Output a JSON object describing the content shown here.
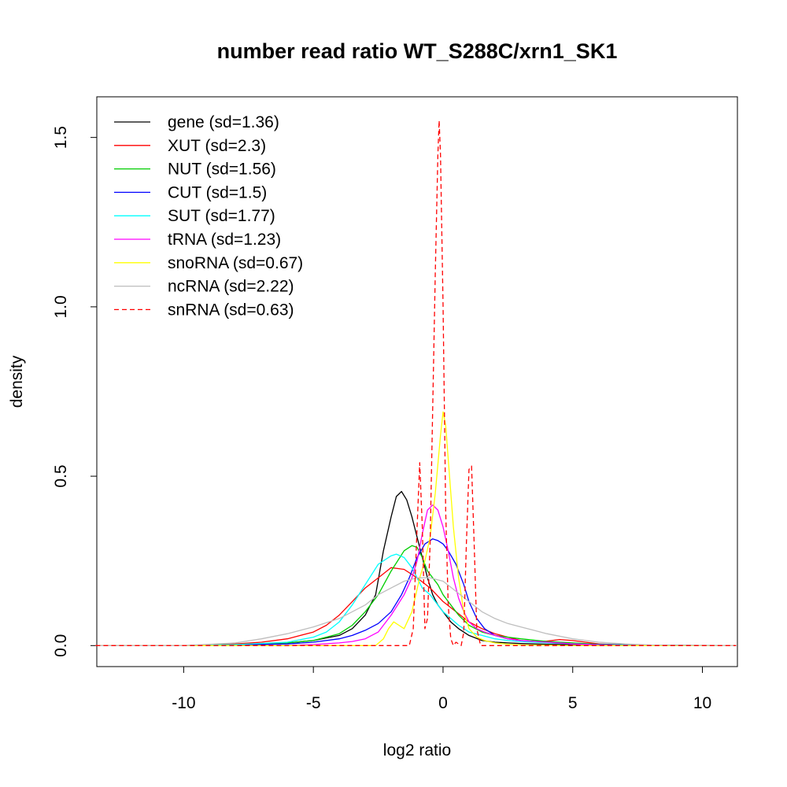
{
  "chart_data": {
    "type": "line",
    "title": "number read ratio WT_S288C/xrn1_SK1",
    "xlabel": "log2 ratio",
    "ylabel": "density",
    "xlim": [
      -13.35,
      11.35
    ],
    "ylim": [
      -0.062,
      1.62
    ],
    "xticks": [
      -10,
      -5,
      0,
      5,
      10
    ],
    "xtick_labels": [
      "-10",
      "-5",
      "0",
      "5",
      "10"
    ],
    "yticks": [
      0,
      0.5,
      1,
      1.5
    ],
    "ytick_labels": [
      "0.0",
      "0.5",
      "1.0",
      "1.5"
    ],
    "grid": false,
    "legend_position": "top-left",
    "series": [
      {
        "name": "gene (sd=1.36)",
        "color": "#000000",
        "dash": false,
        "x": [
          -13.4,
          -10,
          -8,
          -6,
          -5,
          -4,
          -3.5,
          -3,
          -2.6,
          -2.3,
          -2.0,
          -1.8,
          -1.6,
          -1.4,
          -1.2,
          -1.0,
          -0.8,
          -0.6,
          -0.4,
          -0.2,
          0,
          0.3,
          0.6,
          1.0,
          1.5,
          2.0,
          2.5,
          3,
          4,
          5,
          6,
          8,
          11.3
        ],
        "y": [
          0,
          0,
          0.003,
          0.008,
          0.015,
          0.03,
          0.05,
          0.09,
          0.15,
          0.28,
          0.38,
          0.44,
          0.455,
          0.43,
          0.38,
          0.32,
          0.26,
          0.2,
          0.15,
          0.12,
          0.1,
          0.07,
          0.05,
          0.03,
          0.015,
          0.01,
          0.008,
          0.006,
          0.004,
          0.003,
          0.002,
          0,
          0
        ]
      },
      {
        "name": "XUT (sd=2.3)",
        "color": "#ff0000",
        "dash": false,
        "x": [
          -13.4,
          -10,
          -8,
          -7,
          -6,
          -5,
          -4.5,
          -4,
          -3.5,
          -3,
          -2.5,
          -2.0,
          -1.5,
          -1.0,
          -0.5,
          0,
          0.5,
          1.0,
          1.5,
          2,
          2.5,
          3,
          3.5,
          4,
          4.5,
          5,
          5.5,
          6,
          7,
          8,
          11.3
        ],
        "y": [
          0,
          0,
          0.005,
          0.01,
          0.02,
          0.04,
          0.06,
          0.09,
          0.13,
          0.17,
          0.2,
          0.23,
          0.225,
          0.2,
          0.17,
          0.13,
          0.1,
          0.07,
          0.05,
          0.035,
          0.025,
          0.015,
          0.012,
          0.013,
          0.018,
          0.015,
          0.01,
          0.005,
          0.002,
          0.001,
          0
        ]
      },
      {
        "name": "NUT (sd=1.56)",
        "color": "#00cd00",
        "dash": false,
        "x": [
          -13.4,
          -10,
          -8,
          -6,
          -5,
          -4,
          -3.5,
          -3,
          -2.5,
          -2.0,
          -1.5,
          -1.2,
          -1.0,
          -0.8,
          -0.6,
          -0.4,
          -0.2,
          0,
          0.3,
          0.6,
          1.0,
          1.5,
          2,
          2.5,
          3,
          4,
          5,
          6,
          8,
          11.3
        ],
        "y": [
          0,
          0,
          0.003,
          0.008,
          0.015,
          0.035,
          0.06,
          0.1,
          0.15,
          0.22,
          0.28,
          0.295,
          0.29,
          0.26,
          0.22,
          0.2,
          0.18,
          0.15,
          0.12,
          0.09,
          0.06,
          0.04,
          0.03,
          0.025,
          0.02,
          0.012,
          0.008,
          0.004,
          0.001,
          0
        ]
      },
      {
        "name": "CUT (sd=1.5)",
        "color": "#0000ff",
        "dash": false,
        "x": [
          -13.4,
          -10,
          -8,
          -6,
          -5,
          -4,
          -3.5,
          -3,
          -2.5,
          -2.0,
          -1.6,
          -1.3,
          -1.0,
          -0.7,
          -0.4,
          -0.2,
          0,
          0.2,
          0.5,
          0.8,
          1.0,
          1.3,
          1.6,
          2,
          2.5,
          3,
          4,
          5,
          6,
          8,
          11.3
        ],
        "y": [
          0,
          0,
          0.002,
          0.005,
          0.01,
          0.02,
          0.03,
          0.045,
          0.065,
          0.1,
          0.15,
          0.2,
          0.26,
          0.3,
          0.315,
          0.31,
          0.3,
          0.28,
          0.24,
          0.18,
          0.13,
          0.08,
          0.05,
          0.03,
          0.02,
          0.015,
          0.01,
          0.005,
          0.003,
          0.001,
          0
        ]
      },
      {
        "name": "SUT (sd=1.77)",
        "color": "#00ffff",
        "dash": false,
        "x": [
          -13.4,
          -10,
          -8,
          -6,
          -5,
          -4.5,
          -4,
          -3.5,
          -3,
          -2.5,
          -2.0,
          -1.8,
          -1.5,
          -1.2,
          -1.0,
          -0.8,
          -0.5,
          -0.2,
          0,
          0.3,
          0.6,
          1.0,
          1.5,
          2,
          2.5,
          3,
          4,
          5,
          6,
          8,
          11.3
        ],
        "y": [
          0,
          0,
          0.003,
          0.01,
          0.025,
          0.04,
          0.07,
          0.12,
          0.18,
          0.24,
          0.265,
          0.27,
          0.26,
          0.23,
          0.2,
          0.17,
          0.15,
          0.12,
          0.1,
          0.08,
          0.06,
          0.04,
          0.03,
          0.02,
          0.015,
          0.012,
          0.008,
          0.005,
          0.002,
          0,
          0
        ]
      },
      {
        "name": "tRNA (sd=1.23)",
        "color": "#ff00ff",
        "dash": false,
        "x": [
          -13.4,
          -6,
          -5,
          -4,
          -3.5,
          -3,
          -2.5,
          -2.0,
          -1.5,
          -1.2,
          -1.0,
          -0.8,
          -0.6,
          -0.4,
          -0.2,
          0,
          0.2,
          0.4,
          0.6,
          0.8,
          1.0,
          1.3,
          1.6,
          2,
          2.5,
          3,
          4,
          5,
          6,
          7,
          11.3
        ],
        "y": [
          0,
          0,
          0.003,
          0.008,
          0.012,
          0.02,
          0.04,
          0.09,
          0.15,
          0.2,
          0.25,
          0.33,
          0.4,
          0.415,
          0.4,
          0.35,
          0.28,
          0.2,
          0.14,
          0.1,
          0.07,
          0.05,
          0.04,
          0.03,
          0.02,
          0.015,
          0.01,
          0.005,
          0.002,
          0,
          0
        ]
      },
      {
        "name": "snoRNA (sd=0.67)",
        "color": "#ffff00",
        "dash": false,
        "x": [
          -13.4,
          -3.5,
          -2.6,
          -2.3,
          -2.1,
          -1.9,
          -1.7,
          -1.5,
          -1.2,
          -0.9,
          -0.7,
          -0.5,
          -0.3,
          -0.1,
          0,
          0.1,
          0.25,
          0.4,
          0.6,
          0.8,
          1.0,
          1.3,
          1.6,
          2.0,
          2.5,
          3,
          4,
          5,
          11.3
        ],
        "y": [
          0,
          0,
          0,
          0.02,
          0.05,
          0.07,
          0.06,
          0.05,
          0.1,
          0.2,
          0.25,
          0.32,
          0.45,
          0.62,
          0.69,
          0.65,
          0.5,
          0.35,
          0.2,
          0.1,
          0.05,
          0.025,
          0.015,
          0.008,
          0.004,
          0.002,
          0.001,
          0,
          0
        ]
      },
      {
        "name": "ncRNA (sd=2.22)",
        "color": "#bebebe",
        "dash": false,
        "x": [
          -13.4,
          -10,
          -8,
          -7,
          -6,
          -5,
          -4,
          -3.5,
          -3,
          -2.5,
          -2.0,
          -1.5,
          -1.0,
          -0.5,
          0,
          0.5,
          1.0,
          1.5,
          2.0,
          2.5,
          3,
          3.5,
          4,
          5,
          6,
          7,
          8,
          11.3
        ],
        "y": [
          0,
          0,
          0.008,
          0.02,
          0.035,
          0.055,
          0.08,
          0.1,
          0.12,
          0.15,
          0.17,
          0.19,
          0.2,
          0.2,
          0.19,
          0.16,
          0.13,
          0.1,
          0.08,
          0.065,
          0.055,
          0.045,
          0.035,
          0.02,
          0.01,
          0.005,
          0.002,
          0
        ]
      },
      {
        "name": "snRNA (sd=0.63)",
        "color": "#ff0000",
        "dash": true,
        "x": [
          -13.4,
          -1.3,
          -1.15,
          -1.0,
          -0.9,
          -0.8,
          -0.7,
          -0.6,
          -0.5,
          -0.4,
          -0.3,
          -0.2,
          -0.15,
          -0.1,
          0,
          0.1,
          0.2,
          0.3,
          0.4,
          0.5,
          0.6,
          0.7,
          0.8,
          0.9,
          1.0,
          1.1,
          1.2,
          1.3,
          1.45,
          1.6,
          11.3
        ],
        "y": [
          0,
          0,
          0.05,
          0.35,
          0.54,
          0.35,
          0.05,
          0.08,
          0.3,
          0.7,
          1.1,
          1.45,
          1.55,
          1.45,
          1.0,
          0.4,
          0.12,
          0.02,
          0.0,
          0.01,
          0.005,
          0.0,
          0.04,
          0.3,
          0.52,
          0.53,
          0.3,
          0.05,
          0,
          0,
          0
        ]
      }
    ]
  }
}
